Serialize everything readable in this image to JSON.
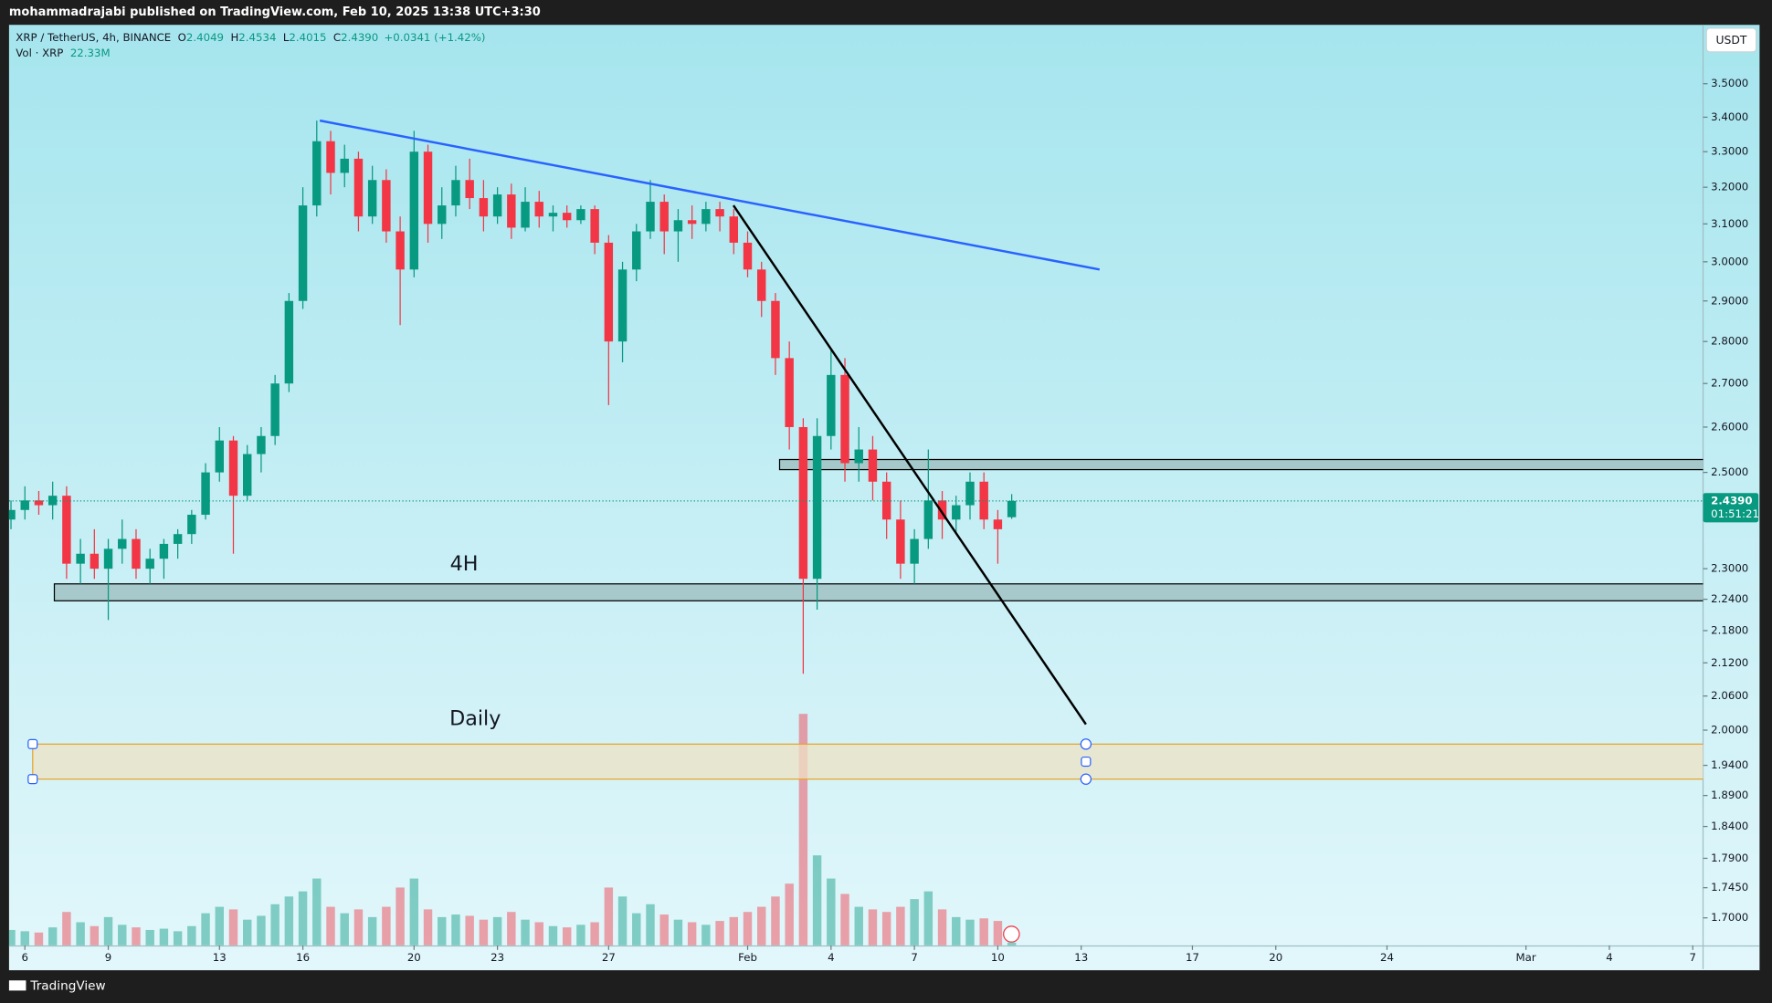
{
  "header": {
    "published": "mohammadrajabi published on TradingView.com, Feb 10, 2025 13:38 UTC+3:30"
  },
  "footer": {
    "brand": "TradingView"
  },
  "currency": "USDT",
  "legend": {
    "symbol": "XRP / TetherUS, 4h, BINANCE",
    "ohlc": [
      {
        "key": "O",
        "value": "2.4049"
      },
      {
        "key": "H",
        "value": "2.4534"
      },
      {
        "key": "L",
        "value": "2.4015"
      },
      {
        "key": "C",
        "value": "2.4390"
      }
    ],
    "change": "+0.0341 (+1.42%)",
    "volume_name": "Vol · XRP",
    "volume_value": "22.33M"
  },
  "chart_data": {
    "type": "candlestick",
    "log_scale": true,
    "grid": false,
    "up_color": "#089981",
    "down_color": "#f23645",
    "xlim": [
      5.43,
      66.33
    ],
    "ylim": [
      1.66,
      3.683
    ],
    "xticks": [
      {
        "value": 6,
        "label": "6"
      },
      {
        "value": 9,
        "label": "9"
      },
      {
        "value": 13,
        "label": "13"
      },
      {
        "value": 16,
        "label": "16"
      },
      {
        "value": 20,
        "label": "20"
      },
      {
        "value": 23,
        "label": "23"
      },
      {
        "value": 27,
        "label": "27"
      },
      {
        "value": 32,
        "label": "Feb"
      },
      {
        "value": 35,
        "label": "4"
      },
      {
        "value": 38,
        "label": "7"
      },
      {
        "value": 41,
        "label": "10"
      },
      {
        "value": 44,
        "label": "13"
      },
      {
        "value": 48,
        "label": "17"
      },
      {
        "value": 51,
        "label": "20"
      },
      {
        "value": 55,
        "label": "24"
      },
      {
        "value": 60,
        "label": "Mar"
      },
      {
        "value": 63,
        "label": "4"
      },
      {
        "value": 66,
        "label": "7"
      }
    ],
    "yticks": [
      {
        "value": 3.5,
        "label": "3.5000"
      },
      {
        "value": 3.4,
        "label": "3.4000"
      },
      {
        "value": 3.3,
        "label": "3.3000"
      },
      {
        "value": 3.2,
        "label": "3.2000"
      },
      {
        "value": 3.1,
        "label": "3.1000"
      },
      {
        "value": 3.0,
        "label": "3.0000"
      },
      {
        "value": 2.9,
        "label": "2.9000"
      },
      {
        "value": 2.8,
        "label": "2.8000"
      },
      {
        "value": 2.7,
        "label": "2.7000"
      },
      {
        "value": 2.6,
        "label": "2.6000"
      },
      {
        "value": 2.5,
        "label": "2.5000"
      },
      {
        "value": 2.3,
        "label": "2.3000"
      },
      {
        "value": 2.24,
        "label": "2.2400"
      },
      {
        "value": 2.18,
        "label": "2.1800"
      },
      {
        "value": 2.12,
        "label": "2.1200"
      },
      {
        "value": 2.06,
        "label": "2.0600"
      },
      {
        "value": 2.0,
        "label": "2.0000"
      },
      {
        "value": 1.94,
        "label": "1.9400"
      },
      {
        "value": 1.89,
        "label": "1.8900"
      },
      {
        "value": 1.84,
        "label": "1.8400"
      },
      {
        "value": 1.79,
        "label": "1.7900"
      },
      {
        "value": 1.745,
        "label": "1.7450"
      },
      {
        "value": 1.7,
        "label": "1.7000"
      }
    ],
    "x": [
      5.5,
      6,
      6.5,
      7,
      7.5,
      8,
      8.5,
      9,
      9.5,
      10,
      10.5,
      11,
      11.5,
      12,
      12.5,
      13,
      13.5,
      14,
      14.5,
      15,
      15.5,
      16,
      16.5,
      17,
      17.5,
      18,
      18.5,
      19,
      19.5,
      20,
      20.5,
      21,
      21.5,
      22,
      22.5,
      23,
      23.5,
      24,
      24.5,
      25,
      25.5,
      26,
      26.5,
      27,
      27.5,
      28,
      28.5,
      29,
      29.5,
      30,
      30.5,
      31,
      31.5,
      32,
      32.5,
      33,
      33.5,
      34,
      34.5,
      35,
      35.5,
      36,
      36.5,
      37,
      37.5,
      38,
      38.5,
      39,
      39.5,
      40,
      40.5,
      41,
      41.5
    ],
    "ohlc": [
      [
        2.4,
        2.44,
        2.38,
        2.42
      ],
      [
        2.42,
        2.47,
        2.4,
        2.44
      ],
      [
        2.44,
        2.46,
        2.41,
        2.43
      ],
      [
        2.43,
        2.48,
        2.4,
        2.45
      ],
      [
        2.45,
        2.47,
        2.28,
        2.31
      ],
      [
        2.31,
        2.36,
        2.27,
        2.33
      ],
      [
        2.33,
        2.38,
        2.28,
        2.3
      ],
      [
        2.3,
        2.36,
        2.2,
        2.34
      ],
      [
        2.34,
        2.4,
        2.31,
        2.36
      ],
      [
        2.36,
        2.38,
        2.28,
        2.3
      ],
      [
        2.3,
        2.34,
        2.27,
        2.32
      ],
      [
        2.32,
        2.36,
        2.28,
        2.35
      ],
      [
        2.35,
        2.38,
        2.32,
        2.37
      ],
      [
        2.37,
        2.42,
        2.35,
        2.41
      ],
      [
        2.41,
        2.52,
        2.4,
        2.5
      ],
      [
        2.5,
        2.6,
        2.48,
        2.57
      ],
      [
        2.57,
        2.58,
        2.33,
        2.45
      ],
      [
        2.45,
        2.56,
        2.44,
        2.54
      ],
      [
        2.54,
        2.6,
        2.5,
        2.58
      ],
      [
        2.58,
        2.72,
        2.56,
        2.7
      ],
      [
        2.7,
        2.92,
        2.68,
        2.9
      ],
      [
        2.9,
        3.2,
        2.88,
        3.15
      ],
      [
        3.15,
        3.39,
        3.12,
        3.33
      ],
      [
        3.33,
        3.36,
        3.18,
        3.24
      ],
      [
        3.24,
        3.32,
        3.2,
        3.28
      ],
      [
        3.28,
        3.3,
        3.08,
        3.12
      ],
      [
        3.12,
        3.26,
        3.1,
        3.22
      ],
      [
        3.22,
        3.25,
        3.05,
        3.08
      ],
      [
        3.08,
        3.12,
        2.84,
        2.98
      ],
      [
        2.98,
        3.36,
        2.96,
        3.3
      ],
      [
        3.3,
        3.32,
        3.05,
        3.1
      ],
      [
        3.1,
        3.2,
        3.06,
        3.15
      ],
      [
        3.15,
        3.26,
        3.12,
        3.22
      ],
      [
        3.22,
        3.28,
        3.14,
        3.17
      ],
      [
        3.17,
        3.22,
        3.08,
        3.12
      ],
      [
        3.12,
        3.2,
        3.1,
        3.18
      ],
      [
        3.18,
        3.21,
        3.06,
        3.09
      ],
      [
        3.09,
        3.2,
        3.08,
        3.16
      ],
      [
        3.16,
        3.19,
        3.09,
        3.12
      ],
      [
        3.12,
        3.15,
        3.08,
        3.13
      ],
      [
        3.13,
        3.15,
        3.09,
        3.11
      ],
      [
        3.11,
        3.15,
        3.1,
        3.14
      ],
      [
        3.14,
        3.15,
        3.02,
        3.05
      ],
      [
        3.05,
        3.07,
        2.65,
        2.8
      ],
      [
        2.8,
        3.0,
        2.75,
        2.98
      ],
      [
        2.98,
        3.1,
        2.95,
        3.08
      ],
      [
        3.08,
        3.22,
        3.06,
        3.16
      ],
      [
        3.16,
        3.18,
        3.02,
        3.08
      ],
      [
        3.08,
        3.14,
        3.0,
        3.11
      ],
      [
        3.11,
        3.15,
        3.06,
        3.1
      ],
      [
        3.1,
        3.16,
        3.08,
        3.14
      ],
      [
        3.14,
        3.16,
        3.08,
        3.12
      ],
      [
        3.12,
        3.14,
        3.02,
        3.05
      ],
      [
        3.05,
        3.08,
        2.96,
        2.98
      ],
      [
        2.98,
        3.0,
        2.86,
        2.9
      ],
      [
        2.9,
        2.92,
        2.72,
        2.76
      ],
      [
        2.76,
        2.8,
        2.55,
        2.6
      ],
      [
        2.6,
        2.62,
        2.1,
        2.28
      ],
      [
        2.28,
        2.62,
        2.22,
        2.58
      ],
      [
        2.58,
        2.78,
        2.55,
        2.72
      ],
      [
        2.72,
        2.76,
        2.48,
        2.52
      ],
      [
        2.52,
        2.6,
        2.48,
        2.55
      ],
      [
        2.55,
        2.58,
        2.44,
        2.48
      ],
      [
        2.48,
        2.5,
        2.36,
        2.4
      ],
      [
        2.4,
        2.44,
        2.28,
        2.31
      ],
      [
        2.31,
        2.38,
        2.27,
        2.36
      ],
      [
        2.36,
        2.55,
        2.34,
        2.44
      ],
      [
        2.44,
        2.46,
        2.36,
        2.4
      ],
      [
        2.4,
        2.45,
        2.37,
        2.43
      ],
      [
        2.43,
        2.5,
        2.4,
        2.48
      ],
      [
        2.48,
        2.5,
        2.38,
        2.4
      ],
      [
        2.4,
        2.42,
        2.31,
        2.38
      ],
      [
        2.4049,
        2.4534,
        2.4015,
        2.439
      ]
    ],
    "volume": [
      120,
      110,
      100,
      140,
      260,
      180,
      150,
      220,
      160,
      140,
      120,
      130,
      110,
      150,
      250,
      300,
      280,
      200,
      230,
      320,
      380,
      420,
      520,
      300,
      250,
      280,
      220,
      300,
      450,
      520,
      280,
      220,
      240,
      230,
      200,
      220,
      260,
      200,
      180,
      150,
      140,
      160,
      180,
      450,
      380,
      250,
      320,
      240,
      200,
      180,
      160,
      190,
      220,
      260,
      300,
      380,
      480,
      1800,
      700,
      520,
      400,
      300,
      280,
      260,
      300,
      360,
      420,
      280,
      220,
      200,
      210,
      190,
      22.33
    ],
    "last_price": {
      "value": 2.439,
      "label": "2.4390"
    },
    "countdown": "01:51:21",
    "trendlines": [
      {
        "color": "#2962ff",
        "points": [
          [
            16.61,
            3.39
          ],
          [
            44.66,
            2.98
          ]
        ]
      },
      {
        "color": "#000000",
        "points": [
          [
            31.49,
            3.15
          ],
          [
            44.17,
            2.01
          ]
        ]
      }
    ],
    "zones": [
      {
        "x": [
          7.06
        ],
        "y": [
          2.237,
          2.27
        ],
        "fill": "#9bbcbc",
        "stroke": "#000000",
        "selected": false
      },
      {
        "x": [
          33.15
        ],
        "y": [
          2.506,
          2.528
        ],
        "fill": "#9bbcbc",
        "stroke": "#000000",
        "selected": false
      },
      {
        "x": [
          6.28,
          44.17
        ],
        "y": [
          1.917,
          1.976
        ],
        "fill": "#ece2c4",
        "stroke": "#e6a52a",
        "selected": true
      }
    ],
    "labels": [
      {
        "text": "4H",
        "x": 21.8,
        "y": 2.308
      },
      {
        "text": "Daily",
        "x": 22.2,
        "y": 2.019
      }
    ]
  }
}
